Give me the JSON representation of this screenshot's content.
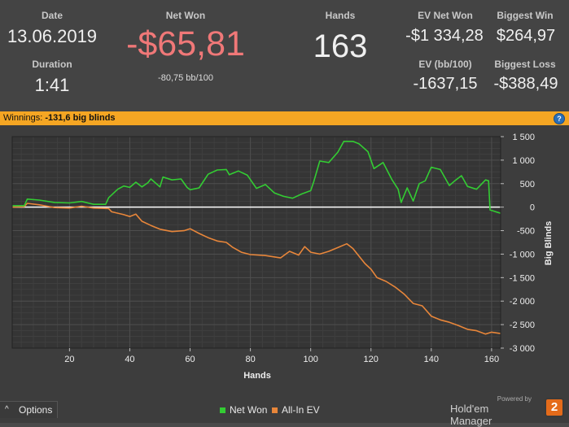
{
  "stats": {
    "date_label": "Date",
    "date_value": "13.06.2019",
    "duration_label": "Duration",
    "duration_value": "1:41",
    "net_won_label": "Net Won",
    "net_won_value": "-$65,81",
    "net_won_sub": "-80,75 bb/100",
    "hands_label": "Hands",
    "hands_value": "163",
    "ev_net_won_label": "EV Net Won",
    "ev_net_won_value": "-$1 334,28",
    "ev_bb_label": "EV (bb/100)",
    "ev_bb_value": "-1637,15",
    "biggest_win_label": "Biggest Win",
    "biggest_win_value": "$264,97",
    "biggest_loss_label": "Biggest Loss",
    "biggest_loss_value": "-$388,49"
  },
  "banner": {
    "label": "Winnings:",
    "value": "-131,6 big blinds",
    "help_glyph": "?"
  },
  "footer": {
    "options_label": "Options",
    "options_caret": "^",
    "powered_by": "Powered by",
    "brand": "Hold'em Manager",
    "brand_version": "2"
  },
  "colors": {
    "net_won": "#33cc33",
    "all_in_ev": "#e8863a",
    "net_won_text": "#f07878",
    "banner": "#f5a623"
  },
  "chart_data": {
    "type": "line",
    "xlabel": "Hands",
    "ylabel": "Big Blinds",
    "xlim": [
      1,
      163
    ],
    "ylim": [
      -3000,
      1500
    ],
    "xticks": [
      20,
      40,
      60,
      80,
      100,
      120,
      140,
      160
    ],
    "yticks": [
      1500,
      1000,
      500,
      0,
      -500,
      -1000,
      -1500,
      -2000,
      -2500,
      -3000
    ],
    "ytick_labels": [
      "1 500",
      "1 000",
      "500",
      "0",
      "-500",
      "-1 000",
      "-1 500",
      "-2 000",
      "-2 500",
      "-3 000"
    ],
    "grid": true,
    "legend_position": "bottom-center",
    "series": [
      {
        "name": "Net Won",
        "color": "#33cc33",
        "points": [
          [
            1,
            30
          ],
          [
            5,
            30
          ],
          [
            6,
            170
          ],
          [
            10,
            150
          ],
          [
            15,
            100
          ],
          [
            20,
            90
          ],
          [
            24,
            120
          ],
          [
            28,
            60
          ],
          [
            32,
            60
          ],
          [
            33,
            200
          ],
          [
            36,
            380
          ],
          [
            38,
            450
          ],
          [
            40,
            420
          ],
          [
            42,
            530
          ],
          [
            44,
            430
          ],
          [
            46,
            520
          ],
          [
            47,
            600
          ],
          [
            50,
            430
          ],
          [
            51,
            640
          ],
          [
            54,
            580
          ],
          [
            57,
            600
          ],
          [
            59,
            420
          ],
          [
            60,
            370
          ],
          [
            63,
            410
          ],
          [
            66,
            700
          ],
          [
            69,
            790
          ],
          [
            72,
            800
          ],
          [
            73,
            690
          ],
          [
            76,
            770
          ],
          [
            79,
            680
          ],
          [
            82,
            400
          ],
          [
            85,
            480
          ],
          [
            88,
            300
          ],
          [
            91,
            230
          ],
          [
            94,
            190
          ],
          [
            97,
            280
          ],
          [
            100,
            350
          ],
          [
            101,
            540
          ],
          [
            103,
            980
          ],
          [
            106,
            950
          ],
          [
            109,
            1170
          ],
          [
            111,
            1400
          ],
          [
            114,
            1400
          ],
          [
            116,
            1350
          ],
          [
            119,
            1180
          ],
          [
            121,
            820
          ],
          [
            124,
            950
          ],
          [
            127,
            580
          ],
          [
            129,
            380
          ],
          [
            130,
            100
          ],
          [
            132,
            410
          ],
          [
            134,
            130
          ],
          [
            136,
            500
          ],
          [
            138,
            560
          ],
          [
            140,
            850
          ],
          [
            143,
            800
          ],
          [
            146,
            460
          ],
          [
            148,
            570
          ],
          [
            150,
            670
          ],
          [
            152,
            440
          ],
          [
            155,
            380
          ],
          [
            158,
            580
          ],
          [
            159,
            560
          ],
          [
            159.5,
            -60
          ],
          [
            163,
            -130
          ]
        ]
      },
      {
        "name": "All-In EV",
        "color": "#e8863a",
        "points": [
          [
            1,
            0
          ],
          [
            5,
            10
          ],
          [
            6,
            80
          ],
          [
            10,
            50
          ],
          [
            15,
            -10
          ],
          [
            20,
            -20
          ],
          [
            24,
            20
          ],
          [
            28,
            -20
          ],
          [
            33,
            -30
          ],
          [
            34,
            -100
          ],
          [
            38,
            -160
          ],
          [
            40,
            -200
          ],
          [
            42,
            -150
          ],
          [
            44,
            -300
          ],
          [
            47,
            -390
          ],
          [
            50,
            -470
          ],
          [
            54,
            -520
          ],
          [
            58,
            -500
          ],
          [
            60,
            -460
          ],
          [
            63,
            -560
          ],
          [
            66,
            -650
          ],
          [
            69,
            -720
          ],
          [
            72,
            -750
          ],
          [
            74,
            -850
          ],
          [
            77,
            -960
          ],
          [
            80,
            -1010
          ],
          [
            85,
            -1030
          ],
          [
            90,
            -1080
          ],
          [
            93,
            -940
          ],
          [
            96,
            -1020
          ],
          [
            98,
            -840
          ],
          [
            100,
            -960
          ],
          [
            103,
            -1000
          ],
          [
            106,
            -940
          ],
          [
            109,
            -860
          ],
          [
            112,
            -780
          ],
          [
            114,
            -880
          ],
          [
            116,
            -1040
          ],
          [
            118,
            -1200
          ],
          [
            120,
            -1320
          ],
          [
            122,
            -1500
          ],
          [
            125,
            -1580
          ],
          [
            128,
            -1700
          ],
          [
            131,
            -1850
          ],
          [
            134,
            -2050
          ],
          [
            137,
            -2100
          ],
          [
            140,
            -2320
          ],
          [
            143,
            -2400
          ],
          [
            146,
            -2450
          ],
          [
            149,
            -2520
          ],
          [
            152,
            -2600
          ],
          [
            155,
            -2630
          ],
          [
            158,
            -2700
          ],
          [
            160,
            -2660
          ],
          [
            163,
            -2690
          ]
        ]
      }
    ]
  }
}
